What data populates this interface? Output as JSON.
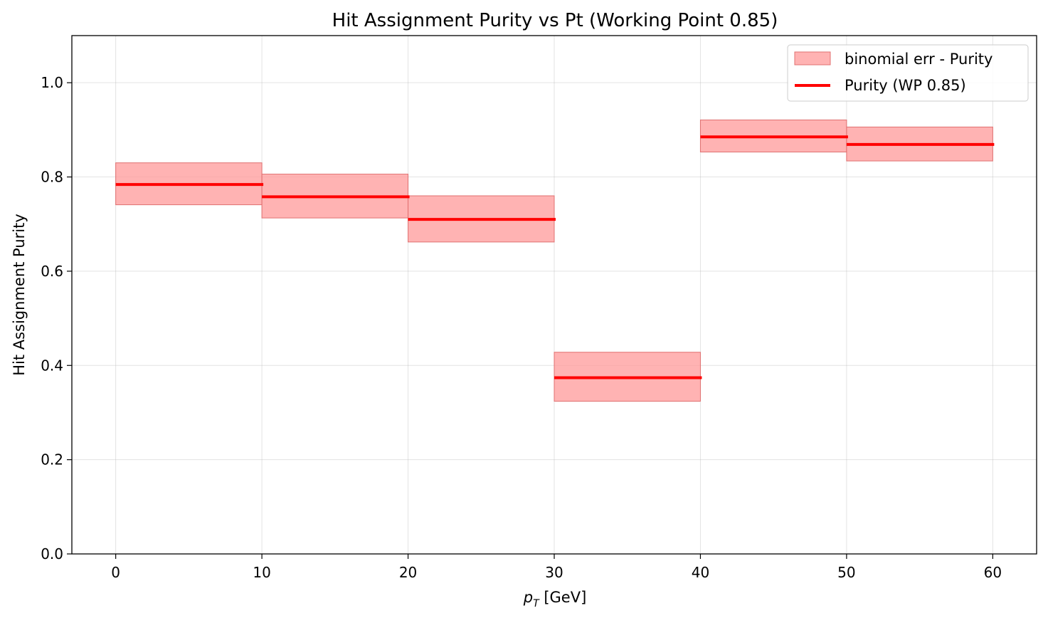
{
  "chart_data": {
    "type": "step",
    "title": "Hit Assignment Purity vs Pt (Working Point 0.85)",
    "xlabel": {
      "main": "p",
      "sub": "T",
      "suffix": " [GeV]"
    },
    "ylabel": "Hit Assignment Purity",
    "xlim": [
      -3,
      63
    ],
    "ylim": [
      0.0,
      1.1
    ],
    "xticks": [
      "0",
      "10",
      "20",
      "30",
      "40",
      "50",
      "60"
    ],
    "yticks": [
      "0.0",
      "0.2",
      "0.4",
      "0.6",
      "0.8",
      "1.0"
    ],
    "grid": true,
    "legend_position": "upper-right",
    "bins": [
      {
        "x0": 0,
        "x1": 10,
        "value": 0.784,
        "err_low": 0.741,
        "err_high": 0.83
      },
      {
        "x0": 10,
        "x1": 20,
        "value": 0.758,
        "err_low": 0.713,
        "err_high": 0.806
      },
      {
        "x0": 20,
        "x1": 30,
        "value": 0.71,
        "err_low": 0.662,
        "err_high": 0.76
      },
      {
        "x0": 30,
        "x1": 40,
        "value": 0.374,
        "err_low": 0.324,
        "err_high": 0.428
      },
      {
        "x0": 40,
        "x1": 50,
        "value": 0.885,
        "err_low": 0.853,
        "err_high": 0.921
      },
      {
        "x0": 50,
        "x1": 60,
        "value": 0.869,
        "err_low": 0.834,
        "err_high": 0.906
      }
    ],
    "series": [
      {
        "name": "binomial err - Purity",
        "kind": "band",
        "color": "#ff9999"
      },
      {
        "name": "Purity (WP 0.85)",
        "kind": "line",
        "color": "#ff0000"
      }
    ]
  }
}
